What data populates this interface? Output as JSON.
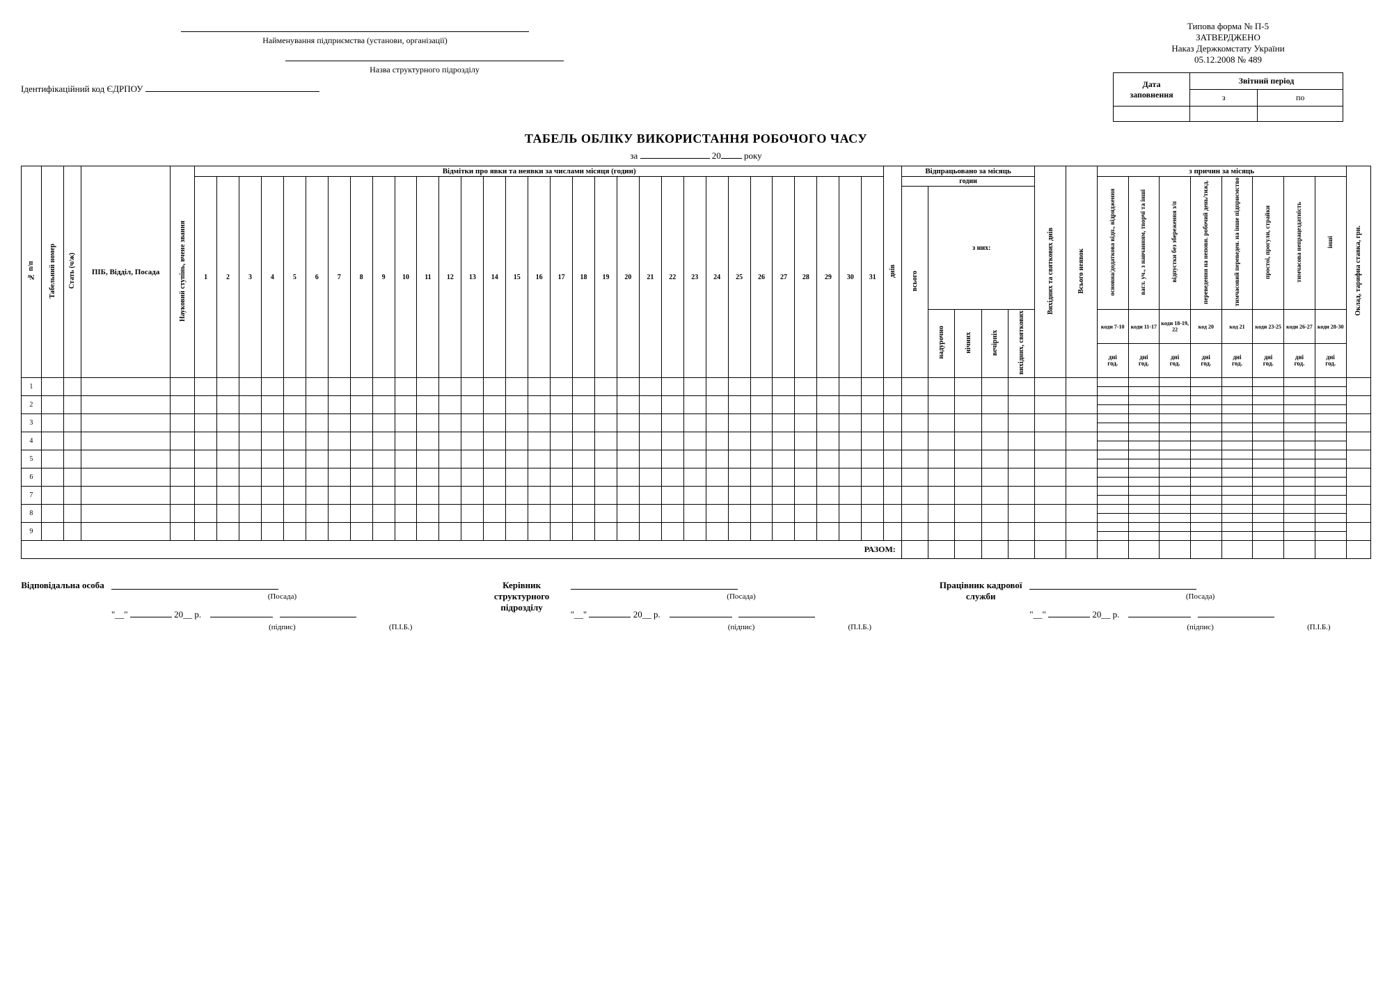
{
  "form": {
    "type_line": "Типова форма № П-5",
    "approved": "ЗАТВЕРДЖЕНО",
    "order": "Наказ Держкомстату України",
    "order_date": "05.12.2008 № 489"
  },
  "header": {
    "org_label": "Найменування підприємства (установи, організації)",
    "dept_label": "Назва структурного підрозділу",
    "edrpou_label": "Ідентифікаційний код ЄДРПОУ"
  },
  "date_block": {
    "date_fill": "Дата заповнення",
    "period": "Звітний період",
    "from": "з",
    "to": "по"
  },
  "title": "ТАБЕЛЬ ОБЛІКУ ВИКОРИСТАННЯ РОБОЧОГО ЧАСУ",
  "subtitle": {
    "za": "за",
    "year_sfx": "20",
    "roku": "року"
  },
  "columns": {
    "nn": "№ п/п",
    "tabnum": "Табельний номер",
    "sex": "Стать (ч/ж)",
    "fio": "ПІБ, Відділ, Посада",
    "degree": "Науковий ступінь, вчене звання",
    "marks_header": "Відмітки про явки та неявки за числами місяця (годин)",
    "days": [
      "1",
      "2",
      "3",
      "4",
      "5",
      "6",
      "7",
      "8",
      "9",
      "10",
      "11",
      "12",
      "13",
      "14",
      "15",
      "16",
      "17",
      "18",
      "19",
      "20",
      "21",
      "22",
      "23",
      "24",
      "25",
      "26",
      "27",
      "28",
      "29",
      "30",
      "31"
    ],
    "dniv": "днів",
    "worked_header": "Відпрацьовано за місяць",
    "hours": "годин",
    "znykh": "з них:",
    "vsogo": "всього",
    "overtime": "надурочно",
    "night": "нічних",
    "evening": "вечірніх",
    "weekend": "вихідних, святкових",
    "weekend_days": "Вихідних та святкових днів",
    "total_absence": "Всього неявок",
    "reasons_header": "з причин за місяць",
    "reasons": [
      "основна/додаткова відп., відрядження",
      "вагл. уч., з навчанням, творчі та інші",
      "відпустки без збереження з/п",
      "переведення на неповн. робочий день/тижд.",
      "тимчасовий переведен. на інше підприємство",
      "простої, прогули, страйки",
      "тимчасова непрацездатність",
      "інші"
    ],
    "code_rows": [
      "коди 7-10",
      "коди 11-17",
      "коди 18-19, 22",
      "код 20",
      "код 21",
      "коди 23-25",
      "коди 26-27",
      "коди 28-30"
    ],
    "dni": "дні",
    "god": "год.",
    "salary": "Оклад, тарифна ставка, грн."
  },
  "razom": "РАЗОМ:",
  "row_count": 9,
  "signatures": {
    "resp": "Відповідальна особа",
    "head": "Керівник структурного підрозділу",
    "hr": "Працівник кадрової служби",
    "posada": "(Посада)",
    "pidpys": "(підпис)",
    "pib": "(П.І.Б.)",
    "date_tmpl_q1": "\"__\"",
    "date_tmpl_year": "20__ р."
  },
  "style": {
    "border_color": "#000000",
    "background": "#ffffff",
    "font": "Times New Roman",
    "title_size_pt": 18,
    "body_size_pt": 11
  }
}
